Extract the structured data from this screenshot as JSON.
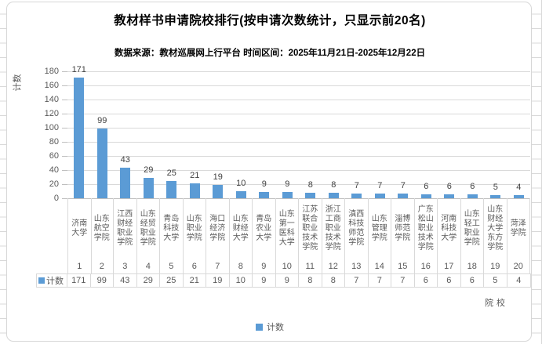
{
  "title": "教材样书申请院校排行(按申请次数统计，只显示前20名)",
  "subtitle": "数据来源：教材巡展网上行平台 时间区间：2025年11月21日-2025年12月22日",
  "y_axis_title": "计数",
  "x_axis_title": "院校",
  "legend_label": "计数",
  "colors": {
    "bar": "#5b9bd5",
    "gridline": "#d9d9d9",
    "axis_line": "#bfbfbf",
    "axis_text": "#595959",
    "data_label_text": "#404040",
    "title_text": "#000000"
  },
  "chart_data": {
    "type": "bar",
    "title": "教材样书申请院校排行(按申请次数统计，只显示前20名)",
    "subtitle": "数据来源：教材巡展网上行平台 时间区间：2025年11月21日-2025年12月22日",
    "xlabel": "院校",
    "ylabel": "计数",
    "ylim": [
      0,
      180
    ],
    "y_ticks": [
      0,
      20,
      40,
      60,
      80,
      100,
      120,
      140,
      160,
      180
    ],
    "grid": true,
    "legend_position": "bottom",
    "categories": [
      "济南大学",
      "山东航空学院",
      "江西财经职业学院",
      "山东经贸职业学院",
      "青岛科技大学",
      "山东职业学院",
      "海口经济学院",
      "山东财经大学",
      "青岛农业大学",
      "山东第一医科大学",
      "江苏联合职业技术学院",
      "浙江工商职业技术学院",
      "滇西科技师范学院",
      "山东管理学院",
      "淄博师范学院",
      "广东松山职业技术学院",
      "河南科技大学",
      "山东轻工职业学院",
      "山东财经大学东方学院",
      "菏泽学院"
    ],
    "ranks": [
      1,
      2,
      3,
      4,
      5,
      6,
      7,
      8,
      9,
      10,
      11,
      12,
      13,
      14,
      15,
      16,
      17,
      18,
      19,
      20
    ],
    "series": [
      {
        "name": "计数",
        "values": [
          171,
          99,
          43,
          29,
          25,
          21,
          19,
          10,
          9,
          9,
          8,
          8,
          7,
          7,
          7,
          6,
          6,
          6,
          5,
          4
        ]
      }
    ],
    "data_table_shown": true
  }
}
